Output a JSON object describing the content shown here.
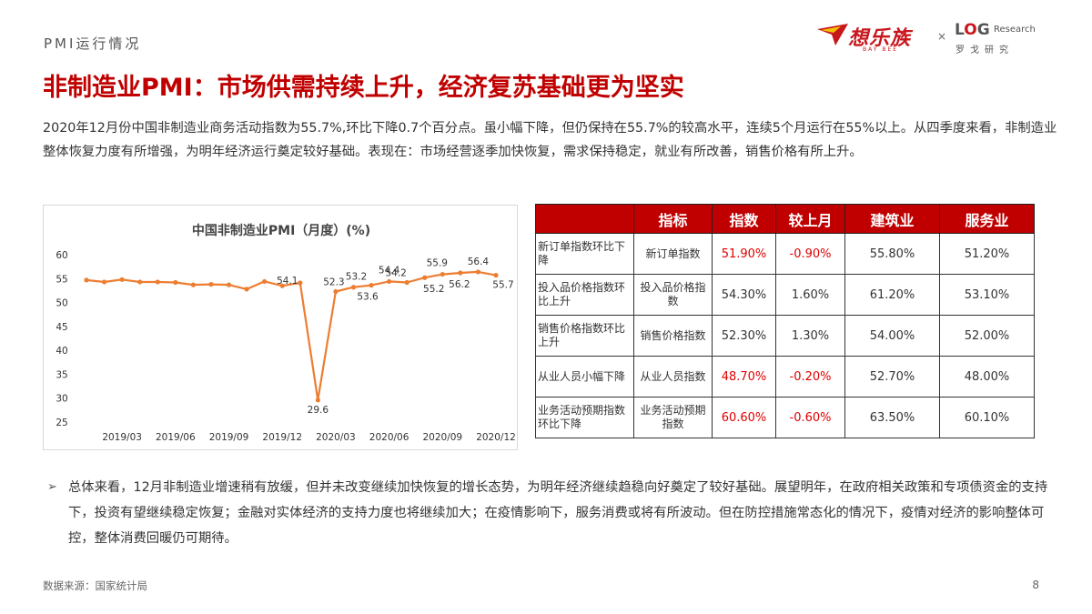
{
  "header": {
    "section_label": "PMI运行情况",
    "title": "非制造业PMI：市场供需持续上升，经济复苏基础更为坚实",
    "logo_brand_text": "想乐族",
    "logo_brand_sub": "BAY BEE",
    "logo_times": "×",
    "logo_log_l": "L",
    "logo_log_o": "O",
    "logo_log_g": "G",
    "logo_research": "Research",
    "logo_cn": "罗戈研究"
  },
  "intro_text": "2020年12月份中国非制造业商务活动指数为55.7%,环比下降0.7个百分点。虽小幅下降，但仍保持在55.7%的较高水平，连续5个月运行在55%以上。从四季度来看，非制造业整体恢复力度有所增强，为明年经济运行奠定较好基础。表现在：市场经营逐季加快恢复，需求保持稳定，就业有所改善，销售价格有所上升。",
  "chart_data": {
    "type": "line",
    "title": "中国非制造业PMI（月度）(%)",
    "ylim": [
      25,
      60
    ],
    "yticks": [
      "60",
      "55",
      "50",
      "45",
      "40",
      "35",
      "30",
      "25"
    ],
    "x_tick_labels": [
      "2019/03",
      "2019/06",
      "2019/09",
      "2019/12",
      "2020/03",
      "2020/06",
      "2020/09",
      "2020/12"
    ],
    "x_tick_index": [
      2,
      5,
      8,
      11,
      14,
      17,
      20,
      23
    ],
    "x": [
      "2019/01",
      "2019/02",
      "2019/03",
      "2019/04",
      "2019/05",
      "2019/06",
      "2019/07",
      "2019/08",
      "2019/09",
      "2019/10",
      "2019/11",
      "2019/12",
      "2020/01",
      "2020/02",
      "2020/03",
      "2020/04",
      "2020/05",
      "2020/06",
      "2020/07",
      "2020/08",
      "2020/09",
      "2020/10",
      "2020/11",
      "2020/12"
    ],
    "values": [
      54.7,
      54.3,
      54.8,
      54.3,
      54.3,
      54.2,
      53.7,
      53.8,
      53.7,
      52.8,
      54.4,
      53.5,
      54.1,
      29.6,
      52.3,
      53.2,
      53.6,
      54.4,
      54.2,
      55.2,
      55.9,
      56.2,
      56.4,
      55.7
    ],
    "point_labels": [
      {
        "index": 12,
        "text": "54.1"
      },
      {
        "index": 13,
        "text": "29.6"
      },
      {
        "index": 14,
        "text": "52.3"
      },
      {
        "index": 15,
        "text": "53.2"
      },
      {
        "index": 16,
        "text": "53.6"
      },
      {
        "index": 17,
        "text": "54.4"
      },
      {
        "index": 18,
        "text": "54.2"
      },
      {
        "index": 19,
        "text": "55.2"
      },
      {
        "index": 20,
        "text": "55.9"
      },
      {
        "index": 21,
        "text": "56.2"
      },
      {
        "index": 22,
        "text": "56.4"
      },
      {
        "index": 23,
        "text": "55.7"
      }
    ],
    "line_color": "#ed7d31",
    "grid": false,
    "legend": "none"
  },
  "table": {
    "headers": [
      "",
      "指标",
      "指数",
      "较上月",
      "建筑业",
      "服务业"
    ],
    "rows": [
      {
        "desc": "新订单指数环比下降",
        "indicator": "新订单指数",
        "index": "51.90%",
        "change": "-0.90%",
        "construction": "55.80%",
        "services": "51.20%",
        "red": true
      },
      {
        "desc": "投入品价格指数环比上升",
        "indicator": "投入品价格指数",
        "index": "54.30%",
        "change": "1.60%",
        "construction": "61.20%",
        "services": "53.10%",
        "red": false
      },
      {
        "desc": "销售价格指数环比上升",
        "indicator": "销售价格指数",
        "index": "52.30%",
        "change": "1.30%",
        "construction": "54.00%",
        "services": "52.00%",
        "red": false
      },
      {
        "desc": "从业人员小幅下降",
        "indicator": "从业人员指数",
        "index": "48.70%",
        "change": "-0.20%",
        "construction": "52.70%",
        "services": "48.00%",
        "red": true
      },
      {
        "desc": "业务活动预期指数环比下降",
        "indicator": "业务活动预期指数",
        "index": "60.60%",
        "change": "-0.60%",
        "construction": "63.50%",
        "services": "60.10%",
        "red": true
      }
    ],
    "accent_color": "#c00000",
    "negative_color": "#e00000"
  },
  "summary": {
    "bullet": "➢",
    "text": "总体来看，12月非制造业增速稍有放缓，但并未改变继续加快恢复的增长态势，为明年经济继续趋稳向好奠定了较好基础。展望明年，在政府相关政策和专项债资金的支持下，投资有望继续稳定恢复；金融对实体经济的支持力度也将继续加大；在疫情影响下，服务消费或将有所波动。但在防控措施常态化的情况下，疫情对经济的影响整体可控，整体消费回暖仍可期待。"
  },
  "footer": {
    "source": "数据来源：国家统计局",
    "page_number": "8"
  }
}
